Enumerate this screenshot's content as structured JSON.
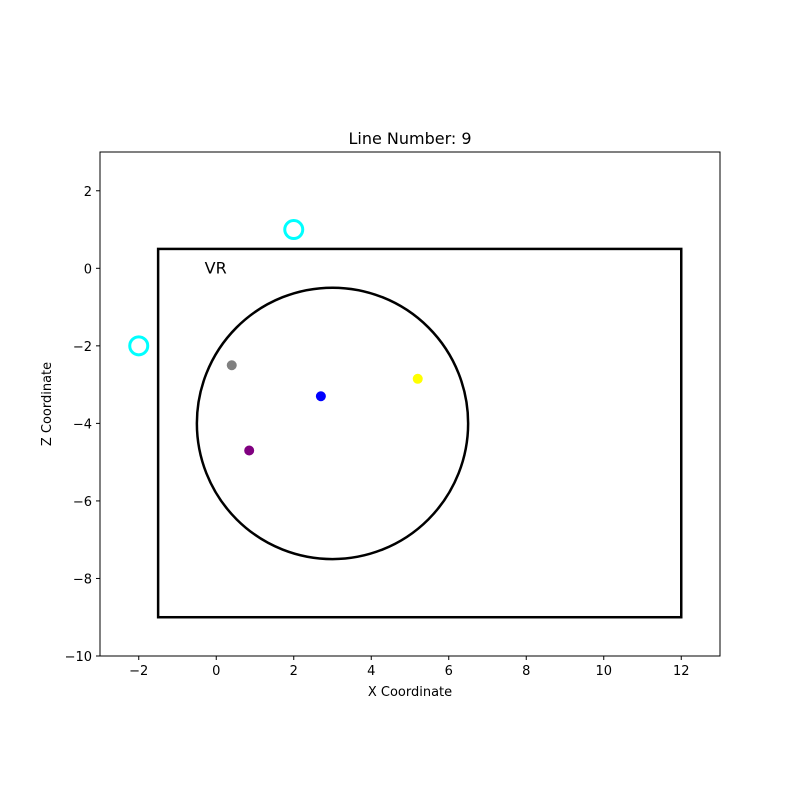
{
  "chart_data": {
    "type": "scatter",
    "title": "Line Number: 9",
    "xlabel": "X Coordinate",
    "ylabel": "Z Coordinate",
    "xlim": [
      -3,
      13
    ],
    "ylim": [
      -10,
      3
    ],
    "xticks": [
      -2,
      0,
      2,
      4,
      6,
      8,
      10,
      12
    ],
    "yticks": [
      -10,
      -8,
      -6,
      -4,
      -2,
      0,
      2
    ],
    "grid": false,
    "rectangle": {
      "x0": -1.5,
      "x1": 12,
      "y0": -9,
      "y1": 0.5,
      "color": "#000000"
    },
    "circle": {
      "cx": 3,
      "cy": -4,
      "r": 3.5,
      "color": "#000000"
    },
    "annotations": [
      {
        "text": "VR",
        "x": -0.3,
        "y": 0
      }
    ],
    "hollow_markers": [
      {
        "x": 2,
        "y": 1,
        "color": "#00ffff"
      },
      {
        "x": -2,
        "y": -2,
        "color": "#00ffff"
      }
    ],
    "points": [
      {
        "x": 0.4,
        "y": -2.5,
        "color": "#808080"
      },
      {
        "x": 2.7,
        "y": -3.3,
        "color": "#0000ff"
      },
      {
        "x": 5.2,
        "y": -2.85,
        "color": "#ffff00"
      },
      {
        "x": 0.85,
        "y": -4.7,
        "color": "#800080"
      }
    ]
  }
}
